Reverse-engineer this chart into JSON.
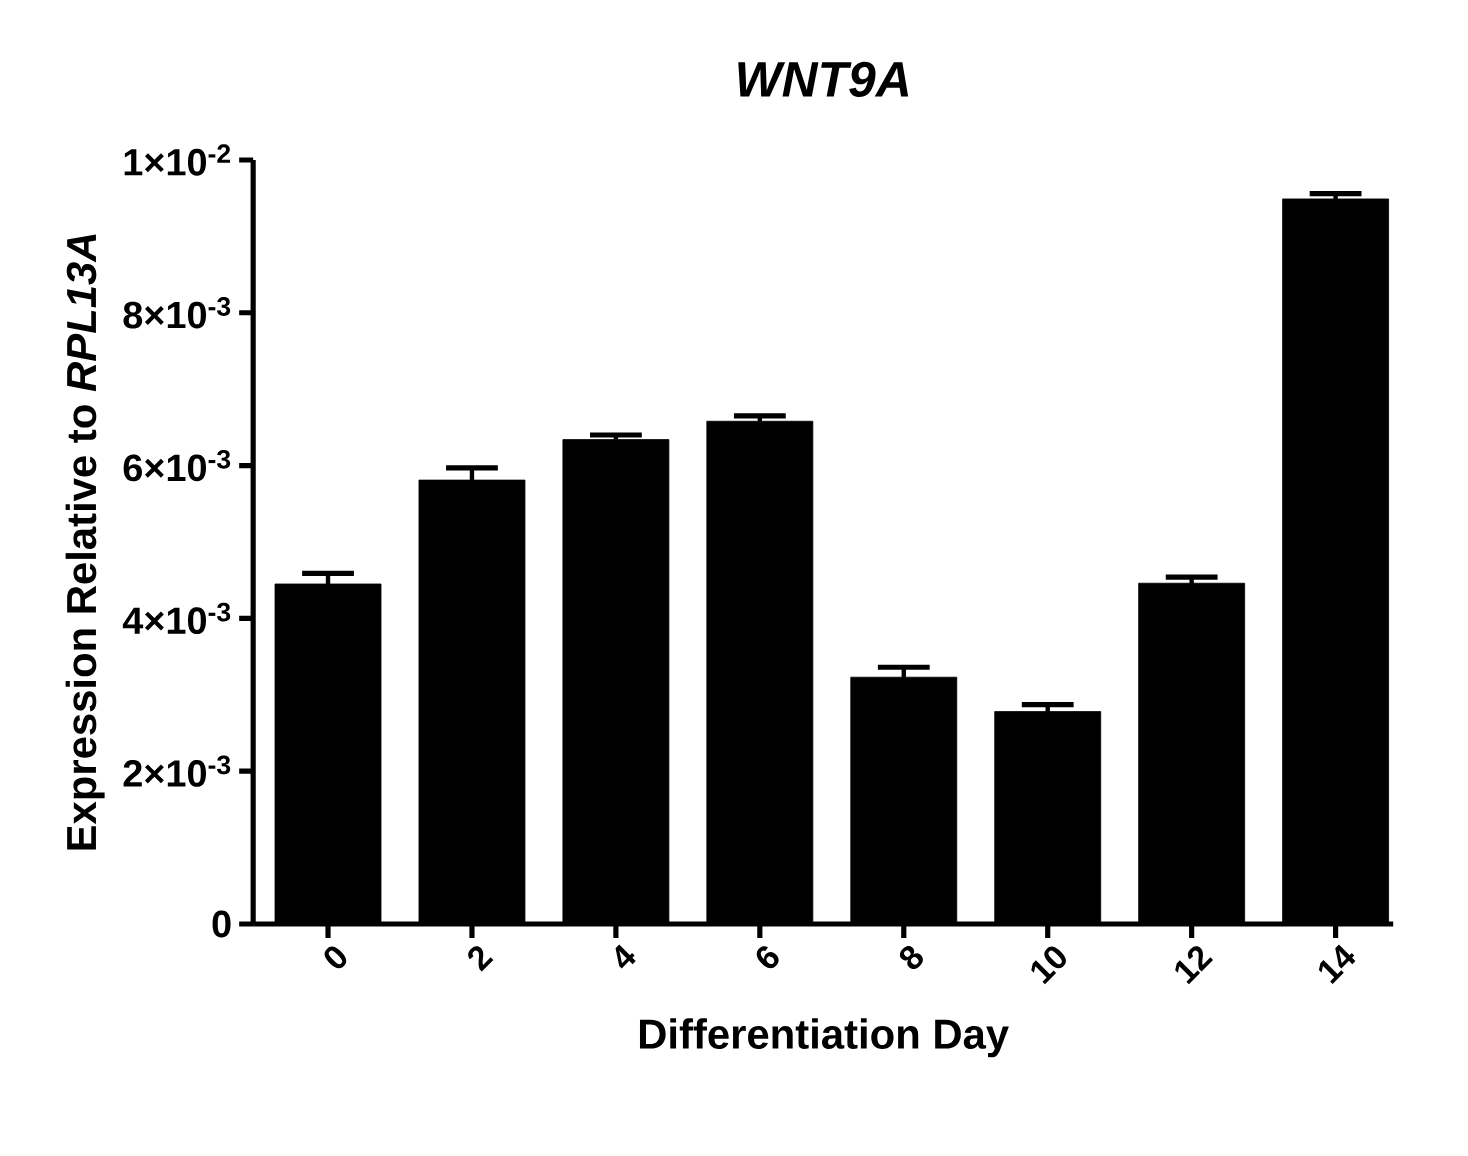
{
  "chart_data": {
    "type": "bar",
    "title": "WNT9A",
    "xlabel": "Differentiation Day",
    "ylabel": "Expression Relative to *RPL13A*",
    "categories": [
      "0",
      "2",
      "4",
      "6",
      "8",
      "10",
      "12",
      "14"
    ],
    "values": [
      0.00445,
      0.00581,
      0.00634,
      0.00658,
      0.00323,
      0.00278,
      0.00446,
      0.00949
    ],
    "errors": [
      0.00014,
      0.00016,
      6e-05,
      7e-05,
      0.00013,
      9e-05,
      8e-05,
      7e-05
    ],
    "color": "#000000",
    "ylim": [
      0,
      0.01
    ],
    "yticks": [
      0,
      {
        "value": 0.002,
        "label": "2×10$^{-3}$"
      },
      {
        "value": 0.004,
        "label": "4×10$^{-3}$"
      },
      {
        "value": 0.006,
        "label": "6×10$^{-3}$"
      },
      {
        "value": 0.008,
        "label": "8×10$^{-3}$"
      },
      {
        "value": 0.01,
        "label": "1×10$^{-2}$"
      }
    ]
  }
}
